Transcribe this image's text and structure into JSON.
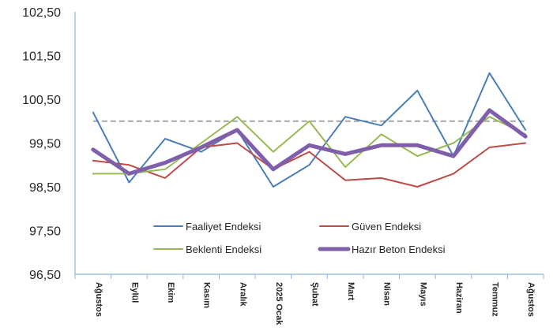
{
  "chart_data": {
    "type": "line",
    "categories": [
      "Ağustos",
      "Eylül",
      "Ekim",
      "Kasım",
      "Aralık",
      "2025 Ocak",
      "Şubat",
      "Mart",
      "Nisan",
      "Mayıs",
      "Haziran",
      "Temmuz",
      "Ağustos"
    ],
    "ylim": [
      96.5,
      102.5
    ],
    "yticks": [
      "96,50",
      "97,50",
      "98,50",
      "99,50",
      "100,50",
      "101,50",
      "102,50"
    ],
    "ytick_values": [
      96.5,
      97.5,
      98.5,
      99.5,
      100.5,
      101.5,
      102.5
    ],
    "reference_line": 100,
    "legend_position": "bottom-center",
    "grid": false,
    "series": [
      {
        "name": "Faaliyet Endeksi",
        "color": "#4a7ebb",
        "values": [
          100.2,
          98.6,
          99.6,
          99.3,
          99.8,
          98.5,
          99.0,
          100.1,
          99.9,
          100.7,
          99.2,
          101.1,
          99.8
        ]
      },
      {
        "name": "Güven Endeksi",
        "color": "#be4b48",
        "values": [
          99.1,
          99.0,
          98.7,
          99.4,
          99.5,
          98.9,
          99.3,
          98.65,
          98.7,
          98.5,
          98.8,
          99.4,
          99.5
        ]
      },
      {
        "name": "Beklenti Endeksi",
        "color": "#98b954",
        "values": [
          98.8,
          98.8,
          98.9,
          99.5,
          100.1,
          99.3,
          100.0,
          98.95,
          99.7,
          99.2,
          99.5,
          100.1,
          99.7
        ]
      },
      {
        "name": "Hazır Beton Endeksi",
        "color": "#7f5fa9",
        "values": [
          99.35,
          98.8,
          99.05,
          99.4,
          99.8,
          98.9,
          99.45,
          99.25,
          99.45,
          99.45,
          99.2,
          100.25,
          99.65
        ],
        "bold": true
      }
    ]
  }
}
